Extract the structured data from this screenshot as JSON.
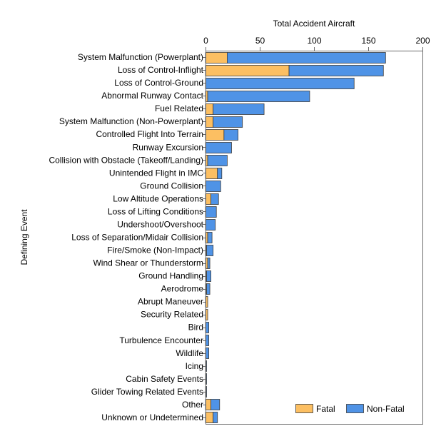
{
  "chart_data": {
    "type": "bar",
    "orientation": "horizontal",
    "stacked": true,
    "xlabel": "Total Accident Aircraft",
    "ylabel": "Defining Event",
    "xlim": [
      0,
      200
    ],
    "xticks": [
      0,
      50,
      100,
      150,
      200
    ],
    "x_axis_position": "top",
    "grid": false,
    "legend_position": "bottom-right",
    "categories": [
      "System Malfunction (Powerplant)",
      "Loss of Control-Inflight",
      "Loss of Control-Ground",
      "Abnormal Runway Contact",
      "Fuel Related",
      "System Malfunction (Non-Powerplant)",
      "Controlled Flight Into Terrain",
      "Runway Excursion",
      "Collision with Obstacle (Takeoff/Landing)",
      "Unintended Flight in IMC",
      "Ground Collision",
      "Low Altitude Operations",
      "Loss of Lifting Conditions",
      "Undershoot/Overshoot",
      "Loss of Separation/Midair Collision",
      "Fire/Smoke (Non-Impact)",
      "Wind Shear or Thunderstorm",
      "Ground Handling",
      "Aerodrome",
      "Abrupt Maneuver",
      "Security Related",
      "Bird",
      "Turbulence Encounter",
      "Wildlife",
      "Icing",
      "Cabin Safety Events",
      "Glider Towing Related Events",
      "Other",
      "Unknown or Undetermined"
    ],
    "series": [
      {
        "name": "Fatal",
        "color": "#fcbf62",
        "values": [
          20,
          77,
          0,
          2,
          7,
          7,
          17,
          0,
          2,
          11,
          0,
          5,
          0,
          0,
          2,
          1,
          2,
          1,
          1,
          2,
          2,
          0,
          0,
          0,
          0,
          0,
          0,
          5,
          7
        ]
      },
      {
        "name": "Non-Fatal",
        "color": "#4f93e6",
        "values": [
          146,
          87,
          137,
          94,
          47,
          27,
          13,
          24,
          18,
          4,
          14,
          7,
          10,
          9,
          4,
          6,
          2,
          4,
          3,
          0,
          0,
          3,
          3,
          3,
          1,
          1,
          1,
          8,
          4
        ]
      }
    ]
  }
}
